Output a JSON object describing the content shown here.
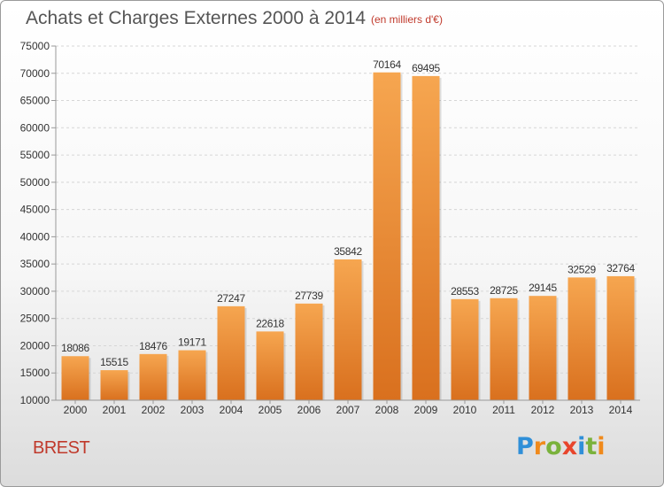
{
  "header": {
    "title": "Achats et Charges Externes 2000 à 2014",
    "subtitle": "(en milliers d'€)"
  },
  "footer": {
    "city": "BREST",
    "logo_letters": [
      "P",
      "r",
      "o",
      "x",
      "i",
      "t",
      "i"
    ]
  },
  "colors": {
    "bar_top": "#f6a650",
    "bar_bottom": "#d9701e",
    "label_text": "#333333",
    "title_text": "#555555",
    "accent": "#c0392b",
    "logo": [
      "#2f8fd8",
      "#f08a1c",
      "#7ab23c",
      "#e8452c",
      "#2f8fd8",
      "#7ab23c",
      "#f08a1c"
    ]
  },
  "chart_data": {
    "type": "bar",
    "title": "Achats et Charges Externes 2000 à 2014",
    "subtitle": "(en milliers d'€)",
    "categories": [
      "2000",
      "2001",
      "2002",
      "2003",
      "2004",
      "2005",
      "2006",
      "2007",
      "2008",
      "2009",
      "2010",
      "2011",
      "2012",
      "2013",
      "2014"
    ],
    "values": [
      18086,
      15515,
      18476,
      19171,
      27247,
      22618,
      27739,
      35842,
      70164,
      69495,
      28553,
      28725,
      29145,
      32529,
      32764
    ],
    "ylim": [
      10000,
      75000
    ],
    "yticks": [
      10000,
      15000,
      20000,
      25000,
      30000,
      35000,
      40000,
      45000,
      50000,
      55000,
      60000,
      65000,
      70000,
      75000
    ],
    "xlabel": "",
    "ylabel": "",
    "grid": "horizontal"
  }
}
